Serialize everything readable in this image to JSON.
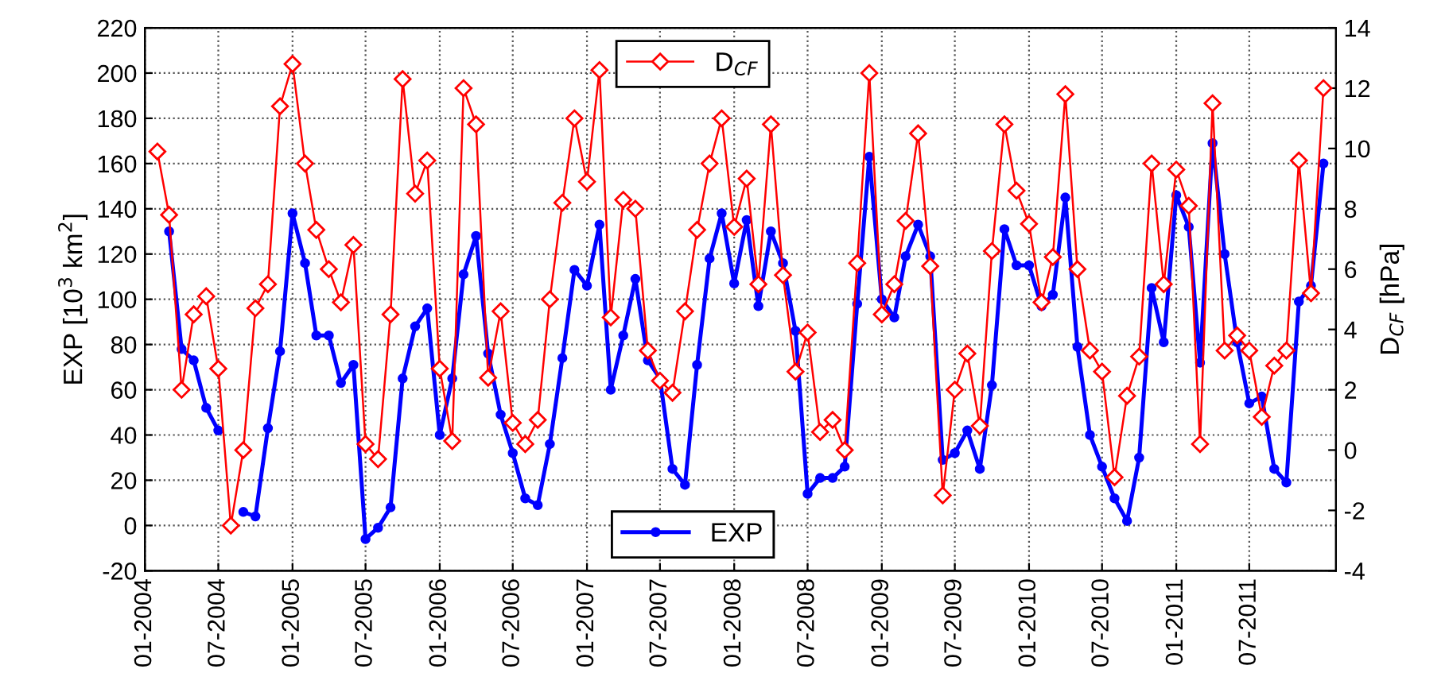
{
  "chart_data": {
    "type": "line",
    "ylabel": "EXP [10$^{3}$ km$^{2}$]",
    "y2label": "D$_{CF}$ [hPa]",
    "x": [
      "2004-02",
      "2004-03",
      "2004-04",
      "2004-05",
      "2004-06",
      "2004-07",
      "2004-08",
      "2004-09",
      "2004-10",
      "2004-11",
      "2004-12",
      "2005-01",
      "2005-02",
      "2005-03",
      "2005-04",
      "2005-05",
      "2005-06",
      "2005-07",
      "2005-08",
      "2005-09",
      "2005-10",
      "2005-11",
      "2005-12",
      "2006-01",
      "2006-02",
      "2006-03",
      "2006-04",
      "2006-05",
      "2006-06",
      "2006-07",
      "2006-08",
      "2006-09",
      "2006-10",
      "2006-11",
      "2006-12",
      "2007-01",
      "2007-02",
      "2007-03",
      "2007-04",
      "2007-05",
      "2007-06",
      "2007-07",
      "2007-08",
      "2007-09",
      "2007-10",
      "2007-11",
      "2007-12",
      "2008-01",
      "2008-02",
      "2008-03",
      "2008-04",
      "2008-05",
      "2008-06",
      "2008-07",
      "2008-08",
      "2008-09",
      "2008-10",
      "2008-11",
      "2008-12",
      "2009-01",
      "2009-02",
      "2009-03",
      "2009-04",
      "2009-05",
      "2009-06",
      "2009-07",
      "2009-08",
      "2009-09",
      "2009-10",
      "2009-11",
      "2009-12",
      "2010-01",
      "2010-02",
      "2010-03",
      "2010-04",
      "2010-05",
      "2010-06",
      "2010-07",
      "2010-08",
      "2010-09",
      "2010-10",
      "2010-11",
      "2010-12",
      "2011-01",
      "2011-02",
      "2011-03",
      "2011-04",
      "2011-05",
      "2011-06",
      "2011-07",
      "2011-08",
      "2011-09",
      "2011-10",
      "2011-11",
      "2011-12",
      "2012-01"
    ],
    "series": [
      {
        "name": "D$_{CF}$",
        "color": "#ff0000",
        "axis": "y2",
        "marker": "diamond",
        "values": [
          9.9,
          7.8,
          2.0,
          4.5,
          5.1,
          2.7,
          -2.5,
          0.0,
          4.7,
          5.5,
          11.4,
          12.8,
          9.5,
          7.3,
          6.0,
          4.9,
          6.8,
          0.2,
          -0.3,
          4.5,
          12.3,
          8.5,
          9.6,
          2.7,
          0.3,
          12.0,
          10.8,
          2.4,
          4.6,
          0.9,
          0.2,
          1.0,
          5.0,
          8.2,
          11.0,
          8.9,
          12.6,
          4.4,
          8.3,
          8.0,
          3.3,
          2.3,
          1.9,
          4.6,
          7.3,
          9.5,
          11.0,
          7.4,
          9.0,
          5.5,
          10.8,
          5.8,
          2.6,
          3.9,
          0.6,
          1.0,
          0.0,
          6.2,
          12.5,
          4.5,
          5.5,
          7.6,
          10.5,
          6.1,
          -1.5,
          2.0,
          3.2,
          0.8,
          6.6,
          10.8,
          8.6,
          7.5,
          4.9,
          6.4,
          11.8,
          6.0,
          3.3,
          2.6,
          -0.9,
          1.8,
          3.1,
          9.5,
          5.5,
          9.3,
          8.1,
          0.2,
          11.5,
          3.3,
          3.8,
          3.3,
          1.1,
          2.8,
          3.3,
          9.6,
          5.2,
          12.0
        ]
      },
      {
        "name": "EXP",
        "color": "#0000ff",
        "axis": "y",
        "marker": "circle",
        "values": [
          null,
          130,
          78,
          73,
          52,
          42,
          null,
          6,
          4,
          43,
          77,
          138,
          116,
          84,
          84,
          63,
          71,
          -6,
          -1,
          8,
          65,
          88,
          96,
          40,
          65,
          111,
          128,
          76,
          49,
          32,
          12,
          9,
          36,
          74,
          113,
          106,
          133,
          60,
          84,
          109,
          73,
          65,
          25,
          18,
          71,
          118,
          138,
          107,
          135,
          97,
          130,
          116,
          86,
          14,
          21,
          21,
          26,
          98,
          163,
          100,
          92,
          119,
          133,
          119,
          29,
          32,
          42,
          25,
          62,
          131,
          115,
          115,
          97,
          102,
          145,
          79,
          40,
          26,
          12,
          2,
          30,
          105,
          81,
          146,
          132,
          72,
          169,
          120,
          81,
          54,
          57,
          25,
          19,
          99,
          106,
          160
        ]
      }
    ],
    "xlim": [
      "2004-01",
      "2012-02"
    ],
    "xticks": [
      {
        "value": "2004-01",
        "label": "01-2004"
      },
      {
        "value": "2004-07",
        "label": "07-2004"
      },
      {
        "value": "2005-01",
        "label": "01-2005"
      },
      {
        "value": "2005-07",
        "label": "07-2005"
      },
      {
        "value": "2006-01",
        "label": "01-2006"
      },
      {
        "value": "2006-07",
        "label": "07-2006"
      },
      {
        "value": "2007-01",
        "label": "01-2007"
      },
      {
        "value": "2007-07",
        "label": "07-2007"
      },
      {
        "value": "2008-01",
        "label": "01-2008"
      },
      {
        "value": "2008-07",
        "label": "07-2008"
      },
      {
        "value": "2009-01",
        "label": "01-2009"
      },
      {
        "value": "2009-07",
        "label": "07-2009"
      },
      {
        "value": "2010-01",
        "label": "01-2010"
      },
      {
        "value": "2010-07",
        "label": "07-2010"
      },
      {
        "value": "2011-01",
        "label": "01-2011"
      },
      {
        "value": "2011-07",
        "label": "07-2011"
      }
    ],
    "ylim": [
      -20,
      220
    ],
    "yticks": [
      -20,
      0,
      20,
      40,
      60,
      80,
      100,
      120,
      140,
      160,
      180,
      200,
      220
    ],
    "y2lim": [
      -4,
      14
    ],
    "y2ticks": [
      -4,
      -2,
      0,
      2,
      4,
      6,
      8,
      10,
      12,
      14
    ],
    "grid": true,
    "legend": "top",
    "line_style": "solid"
  }
}
